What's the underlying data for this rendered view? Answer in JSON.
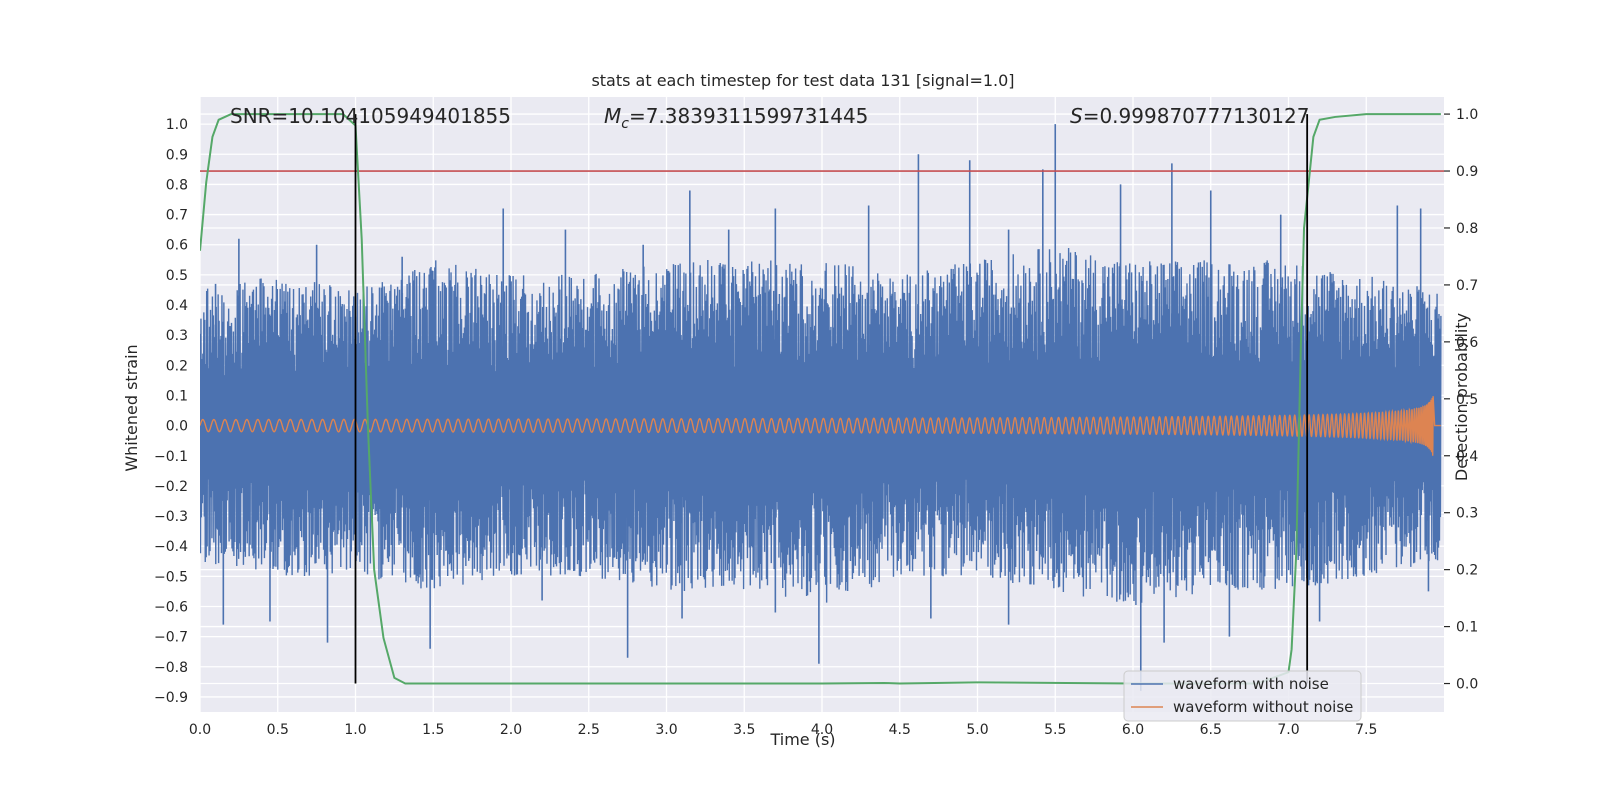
{
  "chart_data": {
    "type": "line",
    "title": "stats at each timestep for test data 131 [signal=1.0]",
    "xlabel": "Time (s)",
    "ylabel_left": "Whitened strain",
    "ylabel_right": "Detection probability",
    "xlim": [
      0.0,
      8.0
    ],
    "ylim_left": [
      -0.95,
      1.09
    ],
    "ylim_right": [
      -0.05,
      1.03
    ],
    "x_ticks": [
      "0.0",
      "0.5",
      "1.0",
      "1.5",
      "2.0",
      "2.5",
      "3.0",
      "3.5",
      "4.0",
      "4.5",
      "5.0",
      "5.5",
      "6.0",
      "6.5",
      "7.0",
      "7.5"
    ],
    "y_left_ticks": [
      "1.0",
      "0.9",
      "0.8",
      "0.7",
      "0.6",
      "0.5",
      "0.4",
      "0.3",
      "0.2",
      "0.1",
      "0.0",
      "−0.1",
      "−0.2",
      "−0.3",
      "−0.4",
      "−0.5",
      "−0.6",
      "−0.7",
      "−0.8",
      "−0.9"
    ],
    "y_right_ticks": [
      "1.0",
      "0.9",
      "0.8",
      "0.7",
      "0.6",
      "0.5",
      "0.4",
      "0.3",
      "0.2",
      "0.1",
      "0.0"
    ],
    "grid": true,
    "annotations": {
      "snr": "SNR=10.104105949401855",
      "mc_symbol": "M",
      "mc_subscript": "c",
      "mc_value": "=7.3839311599731445",
      "s_symbol": "S",
      "s_value": "=0.999870777130127"
    },
    "threshold": {
      "right_axis_value": 0.9,
      "color": "#c44e52"
    },
    "vertical_markers_x": [
      1.0,
      7.12
    ],
    "legend": {
      "position": "lower-right",
      "entries": [
        {
          "label": "waveform with noise",
          "color": "#4c72b0"
        },
        {
          "label": "waveform without noise",
          "color": "#dd8452"
        }
      ]
    },
    "series": [
      {
        "name": "waveform with noise",
        "axis": "left",
        "color": "#4c72b0",
        "envelope": {
          "x": [
            0.0,
            0.5,
            1.0,
            1.5,
            2.0,
            2.5,
            3.0,
            3.5,
            4.0,
            4.5,
            5.0,
            5.5,
            6.0,
            6.5,
            7.0,
            7.5,
            7.98
          ],
          "upper": [
            0.45,
            0.5,
            0.45,
            0.55,
            0.5,
            0.5,
            0.55,
            0.55,
            0.55,
            0.5,
            0.55,
            0.6,
            0.55,
            0.55,
            0.55,
            0.5,
            0.45
          ],
          "lower": [
            -0.45,
            -0.5,
            -0.5,
            -0.55,
            -0.5,
            -0.5,
            -0.55,
            -0.55,
            -0.6,
            -0.5,
            -0.5,
            -0.55,
            -0.6,
            -0.55,
            -0.55,
            -0.5,
            -0.45
          ]
        },
        "spikes": [
          [
            0.1,
            0.47
          ],
          [
            0.25,
            0.62
          ],
          [
            0.75,
            0.6
          ],
          [
            1.3,
            0.56
          ],
          [
            1.95,
            0.72
          ],
          [
            2.35,
            0.65
          ],
          [
            2.85,
            0.6
          ],
          [
            3.15,
            0.78
          ],
          [
            3.4,
            0.65
          ],
          [
            3.7,
            0.72
          ],
          [
            4.3,
            0.73
          ],
          [
            4.62,
            0.9
          ],
          [
            4.95,
            0.88
          ],
          [
            5.2,
            0.65
          ],
          [
            5.42,
            0.85
          ],
          [
            5.5,
            1.0
          ],
          [
            5.92,
            0.8
          ],
          [
            6.25,
            0.87
          ],
          [
            6.5,
            0.78
          ],
          [
            6.95,
            0.7
          ],
          [
            7.7,
            0.73
          ],
          [
            7.85,
            0.72
          ],
          [
            0.15,
            -0.66
          ],
          [
            0.45,
            -0.65
          ],
          [
            0.82,
            -0.72
          ],
          [
            1.48,
            -0.74
          ],
          [
            2.2,
            -0.58
          ],
          [
            2.75,
            -0.77
          ],
          [
            3.1,
            -0.64
          ],
          [
            3.7,
            -0.62
          ],
          [
            3.98,
            -0.79
          ],
          [
            4.7,
            -0.64
          ],
          [
            5.2,
            -0.66
          ],
          [
            6.05,
            -0.88
          ],
          [
            6.2,
            -0.72
          ],
          [
            6.62,
            -0.7
          ],
          [
            7.2,
            -0.65
          ],
          [
            7.9,
            -0.55
          ]
        ]
      },
      {
        "name": "waveform without noise",
        "axis": "left",
        "color": "#dd8452",
        "chirp": {
          "t_start": 0.0,
          "t_end": 7.93,
          "t_merge": 7.94,
          "amp_start": 0.02,
          "amp_peak": 0.32,
          "freq_start_hz": 14,
          "freq_end_hz": 250
        }
      },
      {
        "name": "detection probability",
        "axis": "right",
        "color": "#55a868",
        "x": [
          0.0,
          0.04,
          0.08,
          0.12,
          0.2,
          0.3,
          0.5,
          0.8,
          0.92,
          1.0,
          1.04,
          1.08,
          1.12,
          1.18,
          1.25,
          1.32,
          1.5,
          2.0,
          3.0,
          4.0,
          4.4,
          4.5,
          5.0,
          6.0,
          6.8,
          7.0,
          7.02,
          7.05,
          7.08,
          7.1,
          7.13,
          7.16,
          7.2,
          7.3,
          7.5,
          7.7,
          7.98
        ],
        "y": [
          0.76,
          0.88,
          0.96,
          0.99,
          1.0,
          1.0,
          1.0,
          1.0,
          1.0,
          0.98,
          0.78,
          0.45,
          0.2,
          0.08,
          0.01,
          0.0,
          0.0,
          0.0,
          0.0,
          0.0,
          0.001,
          0.0,
          0.002,
          0.0,
          0.0,
          0.02,
          0.06,
          0.23,
          0.6,
          0.8,
          0.88,
          0.96,
          0.99,
          0.995,
          1.0,
          1.0,
          1.0
        ]
      }
    ]
  }
}
